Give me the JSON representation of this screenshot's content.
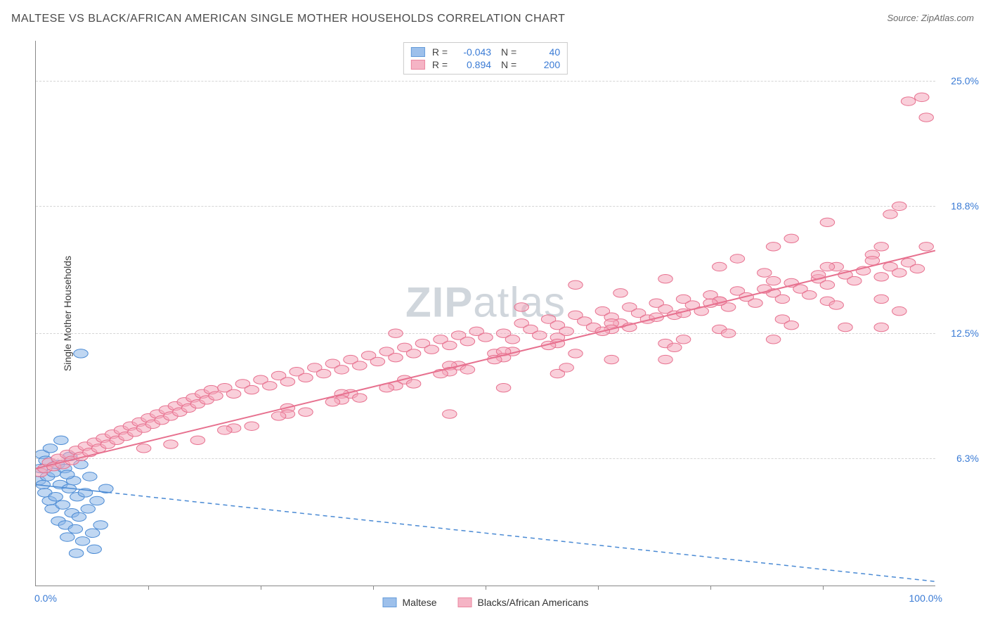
{
  "header": {
    "title": "MALTESE VS BLACK/AFRICAN AMERICAN SINGLE MOTHER HOUSEHOLDS CORRELATION CHART",
    "source": "Source: ZipAtlas.com"
  },
  "watermark": {
    "bold": "ZIP",
    "light": "atlas"
  },
  "chart": {
    "type": "scatter",
    "y_label": "Single Mother Households",
    "x_range": [
      0,
      100
    ],
    "y_range": [
      0,
      27
    ],
    "y_ticks": [
      {
        "value": 6.3,
        "label": "6.3%"
      },
      {
        "value": 12.5,
        "label": "12.5%"
      },
      {
        "value": 18.8,
        "label": "18.8%"
      },
      {
        "value": 25.0,
        "label": "25.0%"
      }
    ],
    "x_ticks_minor": [
      12.5,
      25,
      37.5,
      50,
      62.5,
      75,
      87.5
    ],
    "x_axis_labels": [
      {
        "value": 0,
        "label": "0.0%"
      },
      {
        "value": 100,
        "label": "100.0%"
      }
    ],
    "background_color": "#ffffff",
    "grid_color": "#d5d5d5",
    "axis_color": "#888888",
    "tick_label_color": "#3a7bd5",
    "series": [
      {
        "name": "Maltese",
        "fill": "#8db6e8",
        "stroke": "#4a8ad4",
        "fill_opacity": 0.55,
        "marker_radius": 8,
        "R": "-0.043",
        "N": "40",
        "trend": {
          "solid_until_x": 8,
          "y0": 5.0,
          "y1": 0.2,
          "dash": "6,5",
          "width": 1.5
        },
        "points": [
          [
            0.3,
            5.2
          ],
          [
            0.5,
            5.8
          ],
          [
            0.7,
            6.5
          ],
          [
            0.8,
            5.0
          ],
          [
            1.0,
            4.6
          ],
          [
            1.1,
            6.2
          ],
          [
            1.3,
            5.4
          ],
          [
            1.5,
            4.2
          ],
          [
            1.6,
            6.8
          ],
          [
            1.8,
            3.8
          ],
          [
            2.0,
            5.6
          ],
          [
            2.2,
            4.4
          ],
          [
            2.4,
            6.0
          ],
          [
            2.5,
            3.2
          ],
          [
            2.7,
            5.0
          ],
          [
            2.8,
            7.2
          ],
          [
            3.0,
            4.0
          ],
          [
            3.2,
            5.8
          ],
          [
            3.3,
            3.0
          ],
          [
            3.5,
            2.4
          ],
          [
            3.7,
            4.8
          ],
          [
            3.8,
            6.4
          ],
          [
            4.0,
            3.6
          ],
          [
            4.2,
            5.2
          ],
          [
            4.4,
            2.8
          ],
          [
            4.6,
            4.4
          ],
          [
            4.8,
            3.4
          ],
          [
            5.0,
            6.0
          ],
          [
            5.2,
            2.2
          ],
          [
            5.5,
            4.6
          ],
          [
            5.8,
            3.8
          ],
          [
            6.0,
            5.4
          ],
          [
            6.3,
            2.6
          ],
          [
            6.8,
            4.2
          ],
          [
            7.2,
            3.0
          ],
          [
            7.8,
            4.8
          ],
          [
            4.5,
            1.6
          ],
          [
            6.5,
            1.8
          ],
          [
            5.0,
            11.5
          ],
          [
            3.5,
            5.5
          ]
        ]
      },
      {
        "name": "Blacks/African Americans",
        "fill": "#f4a8bb",
        "stroke": "#e7718f",
        "fill_opacity": 0.55,
        "marker_radius": 8,
        "R": "0.894",
        "N": "200",
        "trend": {
          "solid_until_x": 100,
          "y0": 5.8,
          "y1": 16.6,
          "dash": null,
          "width": 2
        },
        "points": [
          [
            0.5,
            5.6
          ],
          [
            1,
            5.8
          ],
          [
            1.5,
            6.1
          ],
          [
            2,
            5.9
          ],
          [
            2.5,
            6.3
          ],
          [
            3,
            6.0
          ],
          [
            3.5,
            6.5
          ],
          [
            4,
            6.2
          ],
          [
            4.5,
            6.7
          ],
          [
            5,
            6.4
          ],
          [
            5.5,
            6.9
          ],
          [
            6,
            6.6
          ],
          [
            6.5,
            7.1
          ],
          [
            7,
            6.8
          ],
          [
            7.5,
            7.3
          ],
          [
            8,
            7.0
          ],
          [
            8.5,
            7.5
          ],
          [
            9,
            7.2
          ],
          [
            9.5,
            7.7
          ],
          [
            10,
            7.4
          ],
          [
            10.5,
            7.9
          ],
          [
            11,
            7.6
          ],
          [
            11.5,
            8.1
          ],
          [
            12,
            7.8
          ],
          [
            12.5,
            8.3
          ],
          [
            13,
            8.0
          ],
          [
            13.5,
            8.5
          ],
          [
            14,
            8.2
          ],
          [
            14.5,
            8.7
          ],
          [
            15,
            8.4
          ],
          [
            15.5,
            8.9
          ],
          [
            16,
            8.6
          ],
          [
            16.5,
            9.1
          ],
          [
            17,
            8.8
          ],
          [
            17.5,
            9.3
          ],
          [
            18,
            9.0
          ],
          [
            18.5,
            9.5
          ],
          [
            19,
            9.2
          ],
          [
            19.5,
            9.7
          ],
          [
            20,
            9.4
          ],
          [
            21,
            9.8
          ],
          [
            22,
            9.5
          ],
          [
            23,
            10.0
          ],
          [
            24,
            9.7
          ],
          [
            25,
            10.2
          ],
          [
            26,
            9.9
          ],
          [
            27,
            10.4
          ],
          [
            28,
            10.1
          ],
          [
            29,
            10.6
          ],
          [
            30,
            10.3
          ],
          [
            31,
            10.8
          ],
          [
            32,
            10.5
          ],
          [
            33,
            11.0
          ],
          [
            34,
            10.7
          ],
          [
            35,
            11.2
          ],
          [
            36,
            10.9
          ],
          [
            37,
            11.4
          ],
          [
            38,
            11.1
          ],
          [
            39,
            11.6
          ],
          [
            40,
            11.3
          ],
          [
            41,
            11.8
          ],
          [
            42,
            11.5
          ],
          [
            43,
            12.0
          ],
          [
            44,
            11.7
          ],
          [
            45,
            12.2
          ],
          [
            46,
            11.9
          ],
          [
            47,
            12.4
          ],
          [
            48,
            12.1
          ],
          [
            49,
            12.6
          ],
          [
            50,
            12.3
          ],
          [
            51,
            11.5
          ],
          [
            52,
            12.5
          ],
          [
            53,
            12.2
          ],
          [
            54,
            13.0
          ],
          [
            55,
            12.7
          ],
          [
            56,
            12.4
          ],
          [
            57,
            13.2
          ],
          [
            58,
            12.9
          ],
          [
            59,
            12.6
          ],
          [
            60,
            13.4
          ],
          [
            61,
            13.1
          ],
          [
            62,
            12.8
          ],
          [
            63,
            13.6
          ],
          [
            64,
            13.3
          ],
          [
            65,
            13.0
          ],
          [
            66,
            13.8
          ],
          [
            67,
            13.5
          ],
          [
            68,
            13.2
          ],
          [
            69,
            14.0
          ],
          [
            70,
            13.7
          ],
          [
            71,
            13.4
          ],
          [
            72,
            14.2
          ],
          [
            73,
            13.9
          ],
          [
            74,
            13.6
          ],
          [
            75,
            14.4
          ],
          [
            76,
            14.1
          ],
          [
            77,
            13.8
          ],
          [
            78,
            14.6
          ],
          [
            79,
            14.3
          ],
          [
            80,
            14.0
          ],
          [
            81,
            15.5
          ],
          [
            82,
            14.5
          ],
          [
            83,
            14.2
          ],
          [
            84,
            15.0
          ],
          [
            85,
            14.7
          ],
          [
            86,
            14.4
          ],
          [
            87,
            15.2
          ],
          [
            88,
            14.9
          ],
          [
            89,
            15.8
          ],
          [
            90,
            15.4
          ],
          [
            91,
            15.1
          ],
          [
            92,
            15.6
          ],
          [
            93,
            16.4
          ],
          [
            94,
            15.3
          ],
          [
            95,
            15.8
          ],
          [
            96,
            15.5
          ],
          [
            97,
            16.0
          ],
          [
            98,
            15.7
          ],
          [
            46,
            8.5
          ],
          [
            52,
            9.8
          ],
          [
            58,
            10.5
          ],
          [
            64,
            11.2
          ],
          [
            70,
            12.0
          ],
          [
            76,
            12.7
          ],
          [
            82,
            16.8
          ],
          [
            88,
            14.1
          ],
          [
            94,
            16.8
          ],
          [
            35,
            9.5
          ],
          [
            41,
            10.2
          ],
          [
            47,
            10.9
          ],
          [
            53,
            11.6
          ],
          [
            59,
            10.8
          ],
          [
            65,
            14.5
          ],
          [
            71,
            11.8
          ],
          [
            77,
            12.5
          ],
          [
            83,
            13.2
          ],
          [
            89,
            13.9
          ],
          [
            95,
            18.4
          ],
          [
            28,
            8.8
          ],
          [
            34,
            9.5
          ],
          [
            40,
            12.5
          ],
          [
            46,
            10.9
          ],
          [
            52,
            11.6
          ],
          [
            58,
            12.3
          ],
          [
            64,
            13.0
          ],
          [
            70,
            11.2
          ],
          [
            76,
            15.8
          ],
          [
            82,
            15.1
          ],
          [
            88,
            15.8
          ],
          [
            94,
            12.8
          ],
          [
            22,
            7.8
          ],
          [
            28,
            8.5
          ],
          [
            34,
            9.2
          ],
          [
            40,
            9.9
          ],
          [
            46,
            10.6
          ],
          [
            52,
            11.3
          ],
          [
            58,
            12.0
          ],
          [
            64,
            12.7
          ],
          [
            70,
            15.2
          ],
          [
            76,
            14.1
          ],
          [
            82,
            12.2
          ],
          [
            88,
            18.0
          ],
          [
            94,
            14.2
          ],
          [
            18,
            7.2
          ],
          [
            24,
            7.9
          ],
          [
            30,
            8.6
          ],
          [
            36,
            9.3
          ],
          [
            42,
            10.0
          ],
          [
            48,
            10.7
          ],
          [
            54,
            13.8
          ],
          [
            60,
            14.9
          ],
          [
            66,
            12.8
          ],
          [
            72,
            13.5
          ],
          [
            78,
            16.2
          ],
          [
            84,
            17.2
          ],
          [
            90,
            12.8
          ],
          [
            96,
            18.8
          ],
          [
            97,
            24.0
          ],
          [
            98.5,
            24.2
          ],
          [
            99,
            23.2
          ],
          [
            15,
            7.0
          ],
          [
            21,
            7.7
          ],
          [
            27,
            8.4
          ],
          [
            33,
            9.1
          ],
          [
            39,
            9.8
          ],
          [
            45,
            10.5
          ],
          [
            51,
            11.2
          ],
          [
            57,
            11.9
          ],
          [
            63,
            12.6
          ],
          [
            69,
            13.3
          ],
          [
            75,
            14.0
          ],
          [
            81,
            14.7
          ],
          [
            87,
            15.4
          ],
          [
            93,
            16.1
          ],
          [
            99,
            16.8
          ],
          [
            12,
            6.8
          ],
          [
            60,
            11.5
          ],
          [
            72,
            12.2
          ],
          [
            84,
            12.9
          ],
          [
            96,
            13.6
          ]
        ]
      }
    ]
  },
  "legend_bottom": [
    {
      "label": "Maltese",
      "fill": "#8db6e8",
      "stroke": "#4a8ad4"
    },
    {
      "label": "Blacks/African Americans",
      "fill": "#f4a8bb",
      "stroke": "#e7718f"
    }
  ]
}
